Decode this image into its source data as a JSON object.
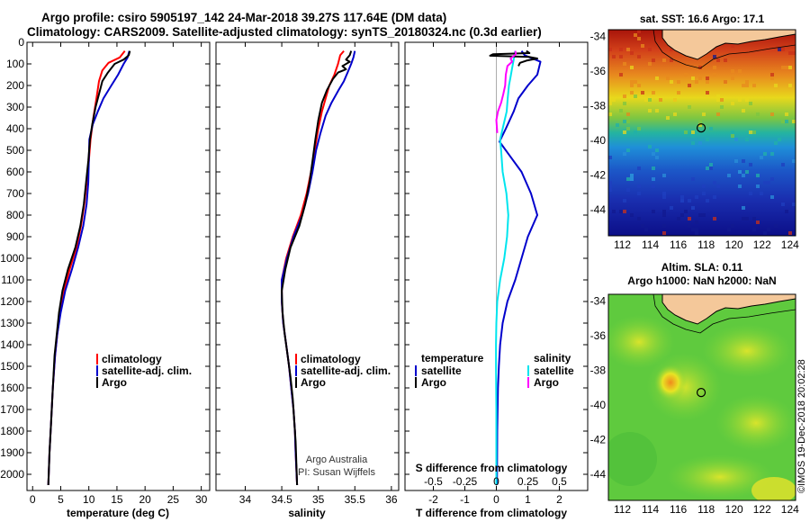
{
  "header": {
    "line1": "Argo profile: csiro 5905197_142 24-Mar-2018 39.27S 117.64E (DM data)",
    "line2": "Climatology: CARS2009. Satellite-adjusted climatology: synTS_20180324.nc (0.3d earlier)"
  },
  "credit": {
    "org": "Argo Australia",
    "pi": "PI: Susan Wijffels",
    "stamp": "©IMOS 19-Dec-2018 20:02:28"
  },
  "colors": {
    "climatology": "#ff0000",
    "satellite": "#0000cc",
    "argo": "#000000",
    "argo_salinity_diff": "#ff00ff",
    "satellite_salinity_diff": "#00e5ee"
  },
  "chart_data": [
    {
      "id": "temperature-profile",
      "type": "line",
      "xlabel": "temperature (deg C)",
      "ylim": [
        2075,
        0
      ],
      "yticks": [
        0,
        100,
        200,
        300,
        400,
        500,
        600,
        700,
        800,
        900,
        1000,
        1100,
        1200,
        1300,
        1400,
        1500,
        1600,
        1700,
        1800,
        1900,
        2000
      ],
      "xlim": [
        -1,
        31.5
      ],
      "xticks": [
        0,
        5,
        10,
        15,
        20,
        25,
        30
      ],
      "legend": {
        "placement": "lower-center",
        "entries": [
          "climatology",
          "satellite-adj. clim.",
          "Argo"
        ]
      },
      "series": [
        {
          "name": "climatology",
          "color": "#ff0000",
          "points": [
            [
              16.4,
              40
            ],
            [
              15.5,
              70
            ],
            [
              13.5,
              95
            ],
            [
              12.4,
              130
            ],
            [
              11.8,
              180
            ],
            [
              11.4,
              250
            ],
            [
              11.1,
              300
            ],
            [
              10.8,
              350
            ],
            [
              10.3,
              450
            ],
            [
              10,
              550
            ],
            [
              9.6,
              650
            ],
            [
              9.2,
              750
            ],
            [
              8.6,
              850
            ],
            [
              7.8,
              950
            ],
            [
              6.6,
              1050
            ],
            [
              5.6,
              1150
            ],
            [
              4.9,
              1250
            ],
            [
              4.4,
              1350
            ],
            [
              4,
              1450
            ],
            [
              3.6,
              1600
            ],
            [
              3.3,
              1750
            ],
            [
              3,
              1900
            ],
            [
              2.8,
              2050
            ]
          ]
        },
        {
          "name": "satellite-adj. clim.",
          "color": "#0000cc",
          "points": [
            [
              17.2,
              40
            ],
            [
              16.9,
              70
            ],
            [
              16.2,
              100
            ],
            [
              15.2,
              150
            ],
            [
              14,
              200
            ],
            [
              12.6,
              260
            ],
            [
              11.6,
              320
            ],
            [
              10.7,
              380
            ],
            [
              10.1,
              450
            ],
            [
              10,
              550
            ],
            [
              9.9,
              650
            ],
            [
              9.6,
              750
            ],
            [
              9,
              850
            ],
            [
              8.1,
              950
            ],
            [
              7,
              1050
            ],
            [
              5.8,
              1150
            ],
            [
              5,
              1250
            ],
            [
              4.4,
              1350
            ],
            [
              4,
              1450
            ],
            [
              3.6,
              1600
            ],
            [
              3.3,
              1750
            ],
            [
              3,
              1900
            ],
            [
              2.8,
              2050
            ]
          ]
        },
        {
          "name": "Argo",
          "color": "#000000",
          "points": [
            [
              17.3,
              40
            ],
            [
              17.1,
              60
            ],
            [
              16.2,
              80
            ],
            [
              14.6,
              100
            ],
            [
              13.4,
              140
            ],
            [
              12.4,
              180
            ],
            [
              11.9,
              230
            ],
            [
              11.2,
              300
            ],
            [
              10.6,
              380
            ],
            [
              10.2,
              450
            ],
            [
              9.9,
              550
            ],
            [
              9.5,
              650
            ],
            [
              9.1,
              750
            ],
            [
              8.5,
              850
            ],
            [
              7.6,
              950
            ],
            [
              6.3,
              1050
            ],
            [
              5.3,
              1150
            ],
            [
              4.7,
              1250
            ],
            [
              4.3,
              1350
            ],
            [
              3.9,
              1450
            ],
            [
              3.6,
              1600
            ],
            [
              3.3,
              1750
            ],
            [
              3,
              1900
            ],
            [
              2.8,
              2050
            ]
          ]
        }
      ]
    },
    {
      "id": "salinity-profile",
      "type": "line",
      "xlabel": "salinity",
      "xlim": [
        33.6,
        36.1
      ],
      "xticks": [
        34,
        34.5,
        35,
        35.5,
        36
      ],
      "legend": {
        "placement": "lower-right",
        "entries": [
          "climatology",
          "satellite-adj. clim.",
          "Argo"
        ]
      },
      "series": [
        {
          "name": "climatology",
          "color": "#ff0000",
          "points": [
            [
              35.35,
              40
            ],
            [
              35.3,
              60
            ],
            [
              35.27,
              100
            ],
            [
              35.22,
              150
            ],
            [
              35.15,
              200
            ],
            [
              35.1,
              260
            ],
            [
              35.05,
              320
            ],
            [
              35,
              400
            ],
            [
              34.95,
              500
            ],
            [
              34.9,
              600
            ],
            [
              34.84,
              700
            ],
            [
              34.76,
              800
            ],
            [
              34.65,
              900
            ],
            [
              34.56,
              1000
            ],
            [
              34.5,
              1100
            ],
            [
              34.5,
              1200
            ],
            [
              34.52,
              1300
            ],
            [
              34.56,
              1400
            ],
            [
              34.6,
              1500
            ],
            [
              34.63,
              1600
            ],
            [
              34.66,
              1700
            ],
            [
              34.68,
              1800
            ],
            [
              34.69,
              1900
            ],
            [
              34.71,
              2050
            ]
          ]
        },
        {
          "name": "satellite-adj. clim.",
          "color": "#0000cc",
          "points": [
            [
              35.5,
              40
            ],
            [
              35.48,
              70
            ],
            [
              35.45,
              100
            ],
            [
              35.4,
              140
            ],
            [
              35.35,
              180
            ],
            [
              35.28,
              220
            ],
            [
              35.18,
              280
            ],
            [
              35.1,
              340
            ],
            [
              35.03,
              420
            ],
            [
              34.97,
              500
            ],
            [
              34.92,
              600
            ],
            [
              34.86,
              700
            ],
            [
              34.78,
              800
            ],
            [
              34.66,
              900
            ],
            [
              34.57,
              1000
            ],
            [
              34.5,
              1100
            ],
            [
              34.5,
              1200
            ],
            [
              34.52,
              1300
            ],
            [
              34.56,
              1400
            ],
            [
              34.6,
              1500
            ],
            [
              34.63,
              1600
            ],
            [
              34.66,
              1700
            ],
            [
              34.68,
              1800
            ],
            [
              34.69,
              1900
            ],
            [
              34.71,
              2050
            ]
          ]
        },
        {
          "name": "Argo",
          "color": "#000000",
          "points": [
            [
              35.45,
              40
            ],
            [
              35.43,
              60
            ],
            [
              35.38,
              80
            ],
            [
              35.43,
              90
            ],
            [
              35.33,
              110
            ],
            [
              35.38,
              125
            ],
            [
              35.27,
              140
            ],
            [
              35.2,
              170
            ],
            [
              35.12,
              220
            ],
            [
              35.05,
              280
            ],
            [
              35,
              360
            ],
            [
              34.96,
              450
            ],
            [
              34.92,
              550
            ],
            [
              34.88,
              650
            ],
            [
              34.82,
              750
            ],
            [
              34.74,
              850
            ],
            [
              34.62,
              950
            ],
            [
              34.55,
              1050
            ],
            [
              34.5,
              1150
            ],
            [
              34.51,
              1250
            ],
            [
              34.54,
              1350
            ],
            [
              34.58,
              1450
            ],
            [
              34.62,
              1550
            ],
            [
              34.65,
              1650
            ],
            [
              34.67,
              1750
            ],
            [
              34.69,
              1850
            ],
            [
              34.7,
              1950
            ],
            [
              34.71,
              2050
            ]
          ]
        }
      ]
    },
    {
      "id": "difference-profile",
      "type": "line",
      "xlabel": "T difference from climatology",
      "xlim": [
        -2.9,
        2.9
      ],
      "xticks": [
        -2,
        -1,
        0,
        1,
        2
      ],
      "top_axis_label": "S difference from climatology",
      "top_axis_ticks": [
        -0.5,
        -0.25,
        0,
        0.25,
        0.5
      ],
      "top_axis_tick_labels": [
        "-0.5",
        "-0.25",
        "0",
        "0.25",
        "0.5"
      ],
      "top_axis_xlim": [
        -0.725,
        0.725
      ],
      "legend_left": {
        "title": "temperature",
        "entries": [
          "satellite",
          "Argo"
        ]
      },
      "legend_right": {
        "title": "salinity",
        "entries": [
          "satellite",
          "Argo"
        ]
      },
      "series": [
        {
          "name": "satellite",
          "quantity": "temperature",
          "color": "#0000cc",
          "points": [
            [
              0.8,
              40
            ],
            [
              0.9,
              60
            ],
            [
              1.4,
              90
            ],
            [
              1.3,
              150
            ],
            [
              1.0,
              200
            ],
            [
              0.7,
              260
            ],
            [
              0.55,
              320
            ],
            [
              0.3,
              400
            ],
            [
              0.1,
              460
            ],
            [
              0.4,
              520
            ],
            [
              0.8,
              600
            ],
            [
              1.1,
              700
            ],
            [
              1.3,
              800
            ],
            [
              1.0,
              900
            ],
            [
              0.8,
              1000
            ],
            [
              0.6,
              1100
            ],
            [
              0.35,
              1200
            ],
            [
              0.2,
              1300
            ],
            [
              0.12,
              1400
            ],
            [
              0.08,
              1500
            ],
            [
              0.05,
              1600
            ],
            [
              0.03,
              1800
            ],
            [
              0.02,
              2050
            ]
          ]
        },
        {
          "name": "satellite",
          "quantity": "salinity",
          "color": "#00e5ee",
          "points": [
            [
              0.6,
              40
            ],
            [
              0.55,
              80
            ],
            [
              0.5,
              120
            ],
            [
              0.45,
              160
            ],
            [
              0.4,
              200
            ],
            [
              0.36,
              260
            ],
            [
              0.33,
              320
            ],
            [
              0.2,
              400
            ],
            [
              0.12,
              450
            ],
            [
              0.15,
              500
            ],
            [
              0.2,
              600
            ],
            [
              0.32,
              700
            ],
            [
              0.38,
              800
            ],
            [
              0.34,
              900
            ],
            [
              0.25,
              1000
            ],
            [
              0.12,
              1100
            ],
            [
              0.03,
              1200
            ],
            [
              0.0,
              1300
            ],
            [
              -0.01,
              1400
            ],
            [
              -0.01,
              1500
            ],
            [
              0.0,
              1700
            ],
            [
              0.0,
              2050
            ]
          ]
        },
        {
          "name": "Argo",
          "quantity": "temperature",
          "color": "#000000",
          "points": [
            [
              0.95,
              40
            ],
            [
              1.05,
              50
            ],
            [
              -0.1,
              55
            ],
            [
              -0.2,
              62
            ],
            [
              1.05,
              68
            ],
            [
              1.3,
              75
            ],
            [
              0.95,
              85
            ],
            [
              0.75,
              95
            ],
            [
              0.7,
              110
            ]
          ]
        },
        {
          "name": "Argo",
          "quantity": "salinity",
          "color": "#ff00ff",
          "points": [
            [
              0.6,
              40
            ],
            [
              0.62,
              55
            ],
            [
              0.45,
              75
            ],
            [
              0.5,
              90
            ],
            [
              0.35,
              110
            ],
            [
              0.3,
              150
            ],
            [
              0.28,
              200
            ],
            [
              0.22,
              240
            ],
            [
              0.15,
              280
            ],
            [
              0.05,
              320
            ],
            [
              0.0,
              360
            ],
            [
              0.02,
              400
            ],
            [
              0.03,
              420
            ]
          ]
        }
      ]
    },
    {
      "id": "sst-map",
      "type": "heatmap",
      "title": "sat. SST: 16.6 Argo: 17.1",
      "xlim": [
        111,
        124.4
      ],
      "ylim": [
        -45.5,
        -33.6
      ],
      "xticks": [
        112,
        114,
        116,
        118,
        120,
        122,
        124
      ],
      "yticks": [
        -34,
        -36,
        -38,
        -40,
        -42,
        -44
      ],
      "float_position": [
        117.64,
        -39.27
      ]
    },
    {
      "id": "sla-map",
      "type": "heatmap",
      "title": "Altim. SLA: 0.11",
      "subtitle": "Argo h1000: NaN h2000: NaN",
      "xlim": [
        111,
        124.4
      ],
      "ylim": [
        -45.5,
        -33.6
      ],
      "xticks": [
        112,
        114,
        116,
        118,
        120,
        122,
        124
      ],
      "yticks": [
        -34,
        -36,
        -38,
        -40,
        -42,
        -44
      ],
      "float_position": [
        117.64,
        -39.27
      ]
    }
  ]
}
